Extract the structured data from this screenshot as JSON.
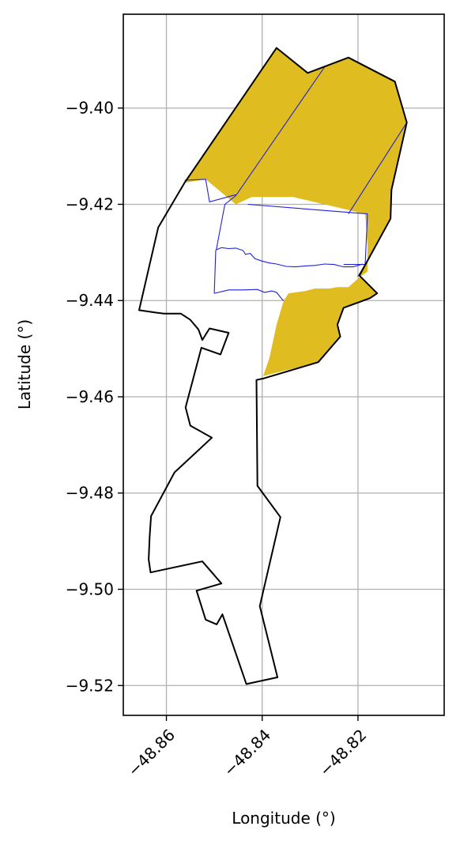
{
  "chart_data": {
    "type": "map",
    "xlabel": "Longitude (°)",
    "ylabel": "Latitude (°)",
    "xlim": [
      -48.869,
      -48.802
    ],
    "ylim": [
      -9.5262,
      -9.3805
    ],
    "xticks": [
      -48.86,
      -48.84,
      -48.82
    ],
    "xtick_labels": [
      "−48.86",
      "−48.84",
      "−48.82"
    ],
    "yticks": [
      -9.4,
      -9.42,
      -9.44,
      -9.46,
      -9.48,
      -9.5,
      -9.52
    ],
    "ytick_labels": [
      "−9.40",
      "−9.42",
      "−9.44",
      "−9.46",
      "−9.48",
      "−9.50",
      "−9.52"
    ],
    "grid": true,
    "colors": {
      "fill": "#dfbc20",
      "boundary": "#000000",
      "subdivision": "#1f1fdc",
      "grid": "#b0b0b0"
    },
    "outer_boundary": [
      [
        -48.837,
        -9.3875
      ],
      [
        -48.8305,
        -9.3927
      ],
      [
        -48.822,
        -9.3895
      ],
      [
        -48.8123,
        -9.3945
      ],
      [
        -48.8098,
        -9.403
      ],
      [
        -48.813,
        -9.417
      ],
      [
        -48.8132,
        -9.423
      ],
      [
        -48.8197,
        -9.4348
      ],
      [
        -48.816,
        -9.4385
      ],
      [
        -48.8175,
        -9.4395
      ],
      [
        -48.823,
        -9.4415
      ],
      [
        -48.8243,
        -9.445
      ],
      [
        -48.8237,
        -9.4475
      ],
      [
        -48.8283,
        -9.4528
      ],
      [
        -48.8398,
        -9.4562
      ],
      [
        -48.8412,
        -9.4565
      ],
      [
        -48.841,
        -9.4785
      ],
      [
        -48.8362,
        -9.485
      ],
      [
        -48.8405,
        -9.5035
      ],
      [
        -48.8368,
        -9.5183
      ],
      [
        -48.8433,
        -9.5197
      ],
      [
        -48.8483,
        -9.5052
      ],
      [
        -48.8495,
        -9.5073
      ],
      [
        -48.8518,
        -9.5063
      ],
      [
        -48.8537,
        -9.5003
      ],
      [
        -48.8485,
        -9.4988
      ],
      [
        -48.8525,
        -9.4942
      ],
      [
        -48.8633,
        -9.4965
      ],
      [
        -48.8637,
        -9.4938
      ],
      [
        -48.8635,
        -9.4892
      ],
      [
        -48.8632,
        -9.4848
      ],
      [
        -48.8583,
        -9.4757
      ],
      [
        -48.8505,
        -9.4685
      ],
      [
        -48.855,
        -9.466
      ],
      [
        -48.856,
        -9.4622
      ],
      [
        -48.8527,
        -9.4498
      ],
      [
        -48.8487,
        -9.4512
      ],
      [
        -48.847,
        -9.4467
      ],
      [
        -48.851,
        -9.4458
      ],
      [
        -48.8525,
        -9.4482
      ],
      [
        -48.8533,
        -9.446
      ],
      [
        -48.855,
        -9.444
      ],
      [
        -48.857,
        -9.4427
      ],
      [
        -48.8605,
        -9.4427
      ],
      [
        -48.8623,
        -9.4425
      ],
      [
        -48.8657,
        -9.442
      ],
      [
        -48.8617,
        -9.4248
      ],
      [
        -48.8562,
        -9.4155
      ],
      [
        -48.837,
        -9.3875
      ]
    ],
    "shaded_area": [
      [
        -48.837,
        -9.3875
      ],
      [
        -48.8305,
        -9.3927
      ],
      [
        -48.822,
        -9.3895
      ],
      [
        -48.8123,
        -9.3945
      ],
      [
        -48.8098,
        -9.403
      ],
      [
        -48.813,
        -9.417
      ],
      [
        -48.8132,
        -9.423
      ],
      [
        -48.8197,
        -9.4348
      ],
      [
        -48.816,
        -9.4385
      ],
      [
        -48.8175,
        -9.4395
      ],
      [
        -48.823,
        -9.4415
      ],
      [
        -48.8243,
        -9.445
      ],
      [
        -48.8237,
        -9.4475
      ],
      [
        -48.8283,
        -9.4528
      ],
      [
        -48.8398,
        -9.4557
      ],
      [
        -48.8385,
        -9.452
      ],
      [
        -48.837,
        -9.445
      ],
      [
        -48.8355,
        -9.44
      ],
      [
        -48.8345,
        -9.4385
      ],
      [
        -48.831,
        -9.438
      ],
      [
        -48.829,
        -9.4375
      ],
      [
        -48.826,
        -9.4375
      ],
      [
        -48.8243,
        -9.4372
      ],
      [
        -48.822,
        -9.4372
      ],
      [
        -48.8195,
        -9.435
      ],
      [
        -48.818,
        -9.434
      ],
      [
        -48.818,
        -9.4285
      ],
      [
        -48.8185,
        -9.422
      ],
      [
        -48.8335,
        -9.4185
      ],
      [
        -48.8422,
        -9.4185
      ],
      [
        -48.8455,
        -9.42
      ],
      [
        -48.8518,
        -9.4148
      ],
      [
        -48.8562,
        -9.4155
      ],
      [
        -48.837,
        -9.3875
      ]
    ],
    "subdivision_lines": [
      [
        [
          -48.8562,
          -9.415
        ],
        [
          -48.8518,
          -9.4148
        ],
        [
          -48.851,
          -9.4195
        ],
        [
          -48.8455,
          -9.418
        ]
      ],
      [
        [
          -48.827,
          -9.3915
        ],
        [
          -48.8455,
          -9.4182
        ]
      ],
      [
        [
          -48.8455,
          -9.4182
        ],
        [
          -48.8478,
          -9.42
        ],
        [
          -48.8496,
          -9.4295
        ]
      ],
      [
        [
          -48.8497,
          -9.4295
        ],
        [
          -48.8485,
          -9.429
        ],
        [
          -48.847,
          -9.4292
        ],
        [
          -48.8455,
          -9.4291
        ],
        [
          -48.844,
          -9.4296
        ],
        [
          -48.8435,
          -9.4304
        ],
        [
          -48.8425,
          -9.4302
        ],
        [
          -48.8415,
          -9.4313
        ],
        [
          -48.84,
          -9.4318
        ],
        [
          -48.8385,
          -9.4322
        ],
        [
          -48.837,
          -9.4324
        ],
        [
          -48.835,
          -9.4329
        ],
        [
          -48.833,
          -9.433
        ],
        [
          -48.831,
          -9.4328
        ],
        [
          -48.829,
          -9.4327
        ],
        [
          -48.827,
          -9.4324
        ],
        [
          -48.825,
          -9.4325
        ],
        [
          -48.823,
          -9.433
        ],
        [
          -48.821,
          -9.433
        ],
        [
          -48.819,
          -9.4324
        ]
      ],
      [
        [
          -48.8497,
          -9.4295
        ],
        [
          -48.85,
          -9.4385
        ]
      ],
      [
        [
          -48.85,
          -9.4385
        ],
        [
          -48.847,
          -9.4378
        ],
        [
          -48.844,
          -9.4378
        ],
        [
          -48.841,
          -9.4377
        ],
        [
          -48.8395,
          -9.4383
        ],
        [
          -48.838,
          -9.438
        ],
        [
          -48.837,
          -9.4383
        ],
        [
          -48.8358,
          -9.4398
        ],
        [
          -48.8355,
          -9.44
        ]
      ],
      [
        [
          -48.843,
          -9.42
        ],
        [
          -48.818,
          -9.422
        ]
      ],
      [
        [
          -48.818,
          -9.422
        ],
        [
          -48.8185,
          -9.4325
        ]
      ],
      [
        [
          -48.8185,
          -9.4325
        ],
        [
          -48.823,
          -9.4325
        ]
      ],
      [
        [
          -48.8185,
          -9.4325
        ],
        [
          -48.82,
          -9.435
        ]
      ],
      [
        [
          -48.822,
          -9.422
        ],
        [
          -48.8098,
          -9.403
        ]
      ]
    ]
  }
}
